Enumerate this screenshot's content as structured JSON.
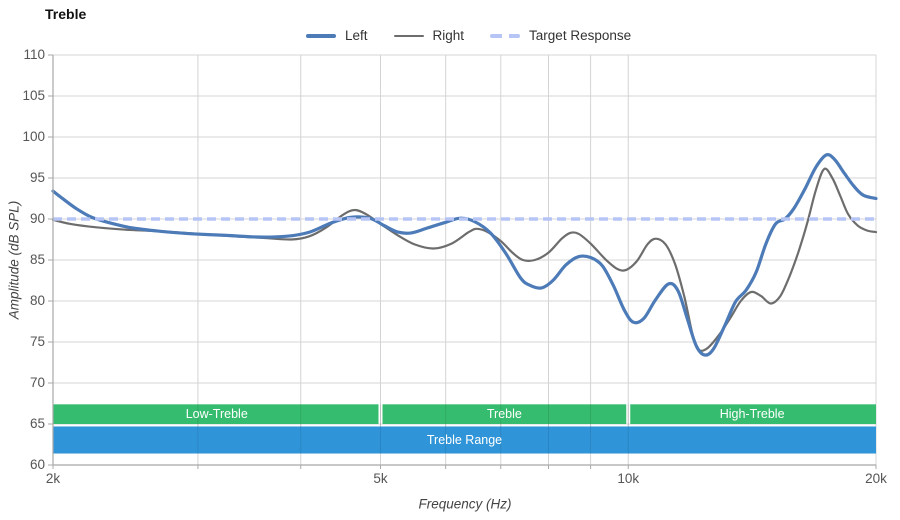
{
  "title": "Treble",
  "legend": {
    "items": [
      {
        "label": "Left",
        "color": "#4c7bb8",
        "style": "solid",
        "thickness": 4
      },
      {
        "label": "Right",
        "color": "#6d6d6d",
        "style": "solid",
        "thickness": 2
      },
      {
        "label": "Target Response",
        "color": "#b6c5f5",
        "style": "dashed",
        "thickness": 4
      }
    ]
  },
  "chart_data": {
    "type": "line",
    "title": "Treble",
    "xlabel": "Frequency (Hz)",
    "ylabel": "Amplitude (dB SPL)",
    "x_scale": "log",
    "xlim": [
      2000,
      20000
    ],
    "ylim": [
      60,
      110
    ],
    "grid": true,
    "legend_position": "top",
    "y_ticks": [
      60,
      65,
      70,
      75,
      80,
      85,
      90,
      95,
      100,
      105,
      110
    ],
    "x_ticks": [
      {
        "f": 2000,
        "label": "2k"
      },
      {
        "f": 5000,
        "label": "5k"
      },
      {
        "f": 10000,
        "label": "10k"
      },
      {
        "f": 20000,
        "label": "20k"
      }
    ],
    "x_gridlines": [
      3000,
      4000,
      5000,
      6000,
      7000,
      8000,
      9000,
      10000,
      20000
    ],
    "target": {
      "name": "Target Response",
      "db": 90,
      "color": "#b6c5f5"
    },
    "colors": {
      "gridline": "#d4d4d4",
      "axis": "#a8a8a8"
    },
    "series": [
      {
        "name": "Left",
        "color": "#4c7bb8",
        "width": 3.2,
        "points": [
          [
            2000,
            93.4
          ],
          [
            2060,
            92.4
          ],
          [
            2140,
            91.2
          ],
          [
            2230,
            90.2
          ],
          [
            2350,
            89.5
          ],
          [
            2500,
            88.9
          ],
          [
            2700,
            88.5
          ],
          [
            2950,
            88.2
          ],
          [
            3250,
            88.0
          ],
          [
            3550,
            87.8
          ],
          [
            3850,
            87.9
          ],
          [
            4100,
            88.4
          ],
          [
            4350,
            89.5
          ],
          [
            4600,
            90.2
          ],
          [
            4850,
            90.1
          ],
          [
            5050,
            89.2
          ],
          [
            5250,
            88.4
          ],
          [
            5450,
            88.3
          ],
          [
            5700,
            88.9
          ],
          [
            6000,
            89.6
          ],
          [
            6250,
            90.1
          ],
          [
            6500,
            89.7
          ],
          [
            6800,
            88.3
          ],
          [
            7100,
            85.8
          ],
          [
            7400,
            82.8
          ],
          [
            7600,
            81.9
          ],
          [
            7850,
            81.6
          ],
          [
            8100,
            82.5
          ],
          [
            8400,
            84.4
          ],
          [
            8700,
            85.4
          ],
          [
            9000,
            85.3
          ],
          [
            9300,
            84.3
          ],
          [
            9600,
            81.8
          ],
          [
            9900,
            78.8
          ],
          [
            10150,
            77.4
          ],
          [
            10450,
            77.9
          ],
          [
            10800,
            80.2
          ],
          [
            11200,
            82.1
          ],
          [
            11500,
            81.2
          ],
          [
            11800,
            77.8
          ],
          [
            12100,
            74.5
          ],
          [
            12400,
            73.4
          ],
          [
            12700,
            74.2
          ],
          [
            13100,
            77.0
          ],
          [
            13500,
            79.9
          ],
          [
            13900,
            81.3
          ],
          [
            14300,
            83.5
          ],
          [
            14700,
            87.0
          ],
          [
            15100,
            89.4
          ],
          [
            15500,
            90.0
          ],
          [
            15900,
            91.3
          ],
          [
            16400,
            93.7
          ],
          [
            16900,
            96.3
          ],
          [
            17400,
            97.8
          ],
          [
            17800,
            97.3
          ],
          [
            18300,
            95.6
          ],
          [
            18800,
            94.0
          ],
          [
            19300,
            92.9
          ],
          [
            20000,
            92.5
          ]
        ]
      },
      {
        "name": "Right",
        "color": "#6d6d6d",
        "width": 2.2,
        "points": [
          [
            2000,
            89.9
          ],
          [
            2100,
            89.4
          ],
          [
            2250,
            89.0
          ],
          [
            2450,
            88.7
          ],
          [
            2700,
            88.5
          ],
          [
            3000,
            88.2
          ],
          [
            3300,
            87.9
          ],
          [
            3600,
            87.7
          ],
          [
            3900,
            87.5
          ],
          [
            4100,
            87.9
          ],
          [
            4300,
            89.0
          ],
          [
            4500,
            90.5
          ],
          [
            4650,
            91.1
          ],
          [
            4800,
            90.6
          ],
          [
            5000,
            89.4
          ],
          [
            5250,
            88.0
          ],
          [
            5500,
            86.9
          ],
          [
            5800,
            86.4
          ],
          [
            6100,
            87.0
          ],
          [
            6400,
            88.4
          ],
          [
            6550,
            88.8
          ],
          [
            6750,
            88.4
          ],
          [
            7000,
            87.3
          ],
          [
            7250,
            85.8
          ],
          [
            7450,
            85.0
          ],
          [
            7700,
            85.0
          ],
          [
            8000,
            85.9
          ],
          [
            8300,
            87.6
          ],
          [
            8500,
            88.3
          ],
          [
            8700,
            88.2
          ],
          [
            9000,
            87.0
          ],
          [
            9400,
            85.0
          ],
          [
            9700,
            83.9
          ],
          [
            9950,
            83.8
          ],
          [
            10250,
            84.9
          ],
          [
            10550,
            86.9
          ],
          [
            10800,
            87.6
          ],
          [
            11100,
            86.9
          ],
          [
            11400,
            84.5
          ],
          [
            11700,
            80.5
          ],
          [
            12000,
            75.5
          ],
          [
            12200,
            74.0
          ],
          [
            12500,
            74.3
          ],
          [
            12900,
            75.9
          ],
          [
            13300,
            77.9
          ],
          [
            13700,
            80.0
          ],
          [
            14100,
            81.1
          ],
          [
            14500,
            80.6
          ],
          [
            14900,
            79.7
          ],
          [
            15300,
            80.6
          ],
          [
            15700,
            83.0
          ],
          [
            16100,
            86.0
          ],
          [
            16500,
            89.5
          ],
          [
            16900,
            93.5
          ],
          [
            17300,
            96.1
          ],
          [
            17700,
            95.0
          ],
          [
            18100,
            92.8
          ],
          [
            18500,
            90.6
          ],
          [
            19000,
            89.2
          ],
          [
            19500,
            88.6
          ],
          [
            20000,
            88.4
          ]
        ]
      }
    ],
    "bands": [
      {
        "label": "Low-Treble",
        "from": 2000,
        "to": 5000,
        "db_from": 65.0,
        "db_to": 67.4,
        "color": "#36bc6e"
      },
      {
        "label": "Treble",
        "from": 5000,
        "to": 10000,
        "db_from": 65.0,
        "db_to": 67.4,
        "color": "#36bc6e"
      },
      {
        "label": "High-Treble",
        "from": 10000,
        "to": 20000,
        "db_from": 65.0,
        "db_to": 67.4,
        "color": "#36bc6e"
      },
      {
        "label": "Treble Range",
        "from": 2000,
        "to": 20000,
        "db_from": 61.4,
        "db_to": 64.7,
        "color": "#3095d8"
      }
    ]
  }
}
